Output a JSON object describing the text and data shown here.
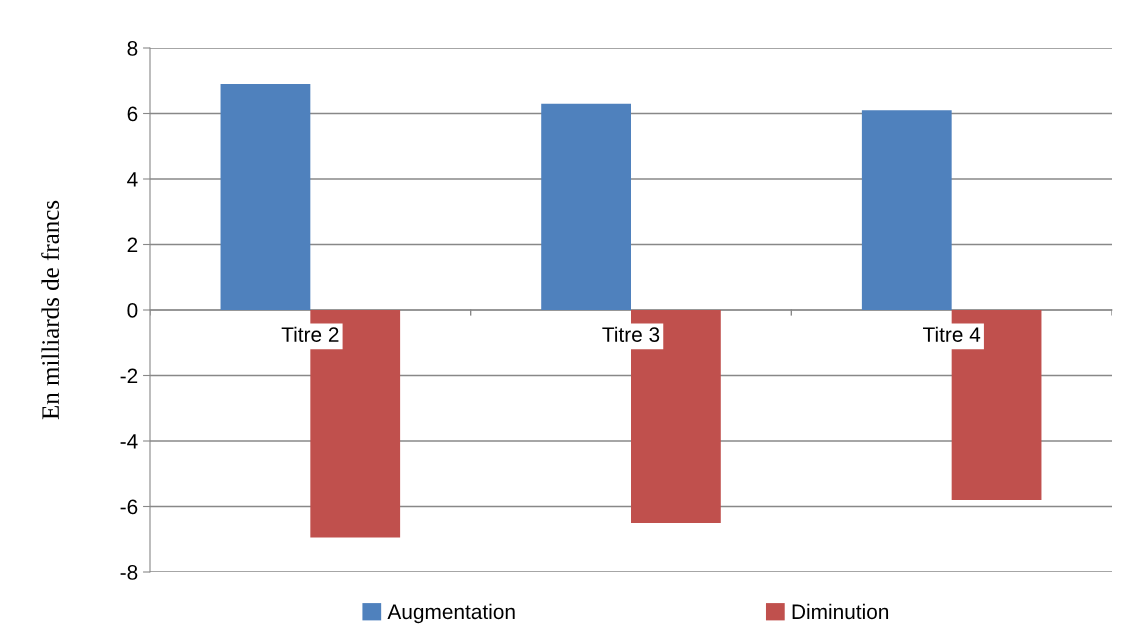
{
  "chart_data": {
    "type": "bar",
    "ylabel": "En milliards de francs",
    "categories": [
      "Titre 2",
      "Titre 3",
      "Titre 4"
    ],
    "series": [
      {
        "name": "Augmentation",
        "color": "#4f81bd",
        "values": [
          6.9,
          6.3,
          6.1
        ]
      },
      {
        "name": "Diminution",
        "color": "#c0504d",
        "values": [
          -6.95,
          -6.5,
          -5.8
        ]
      }
    ],
    "ylim": [
      -8,
      8
    ],
    "yticks": [
      -8,
      -6,
      -4,
      -2,
      0,
      2,
      4,
      6,
      8
    ],
    "grid": "y",
    "legend": "bottom"
  }
}
